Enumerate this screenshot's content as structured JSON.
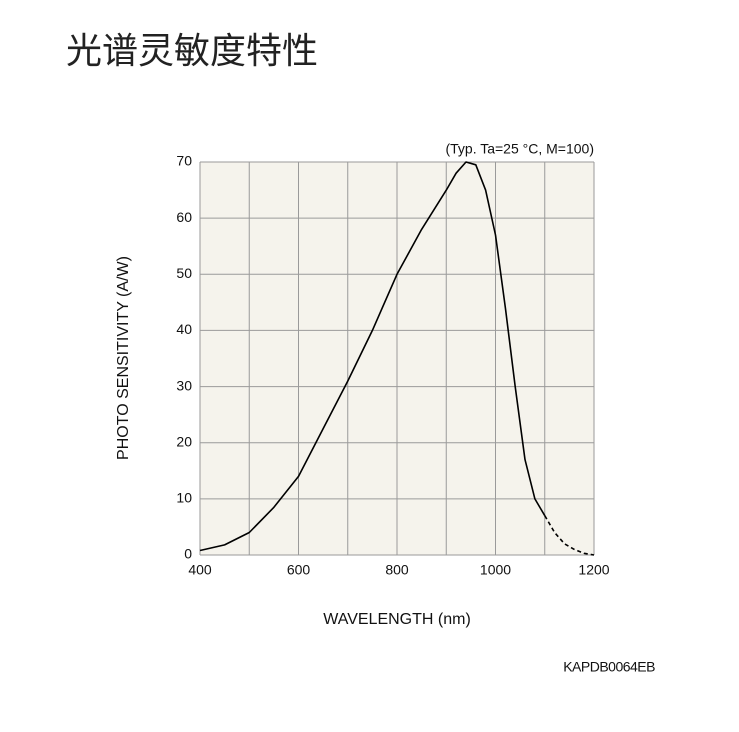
{
  "heading": "光谱灵敏度特性",
  "chart_data": {
    "type": "line",
    "annotation": "(Typ. Ta=25 °C, M=100)",
    "code": "KAPDB0064EB",
    "x_label": "WAVELENGTH (nm)",
    "y_label": "PHOTO SENSITIVITY (A/W)",
    "x": [
      400,
      450,
      500,
      550,
      600,
      650,
      700,
      750,
      800,
      850,
      900,
      920,
      940,
      960,
      980,
      1000,
      1020,
      1040,
      1060,
      1080,
      1100,
      1120,
      1140,
      1160,
      1180,
      1200
    ],
    "series": [
      {
        "color": "#000000",
        "style": "solid",
        "values": [
          0.8,
          1.8,
          4,
          8.5,
          14,
          22.5,
          31,
          40,
          50,
          58,
          65,
          68,
          70,
          69.5,
          65,
          57,
          44,
          30,
          17,
          10,
          7,
          null,
          null,
          null,
          null,
          null
        ]
      },
      {
        "color": "#000000",
        "style": "dashed",
        "values": [
          null,
          null,
          null,
          null,
          null,
          null,
          null,
          null,
          null,
          null,
          null,
          null,
          null,
          null,
          null,
          null,
          null,
          null,
          null,
          null,
          7,
          4,
          2,
          1,
          0.3,
          0
        ]
      }
    ],
    "xlim": [
      400,
      1200
    ],
    "ylim": [
      0,
      70
    ],
    "xticks": [
      400,
      600,
      800,
      1000,
      1200
    ],
    "yticks": [
      0,
      10,
      20,
      30,
      40,
      50,
      60,
      70
    ],
    "xgrid": [
      500,
      700,
      900,
      1100
    ],
    "grid": true,
    "plot_background": "#f5f3ec"
  }
}
